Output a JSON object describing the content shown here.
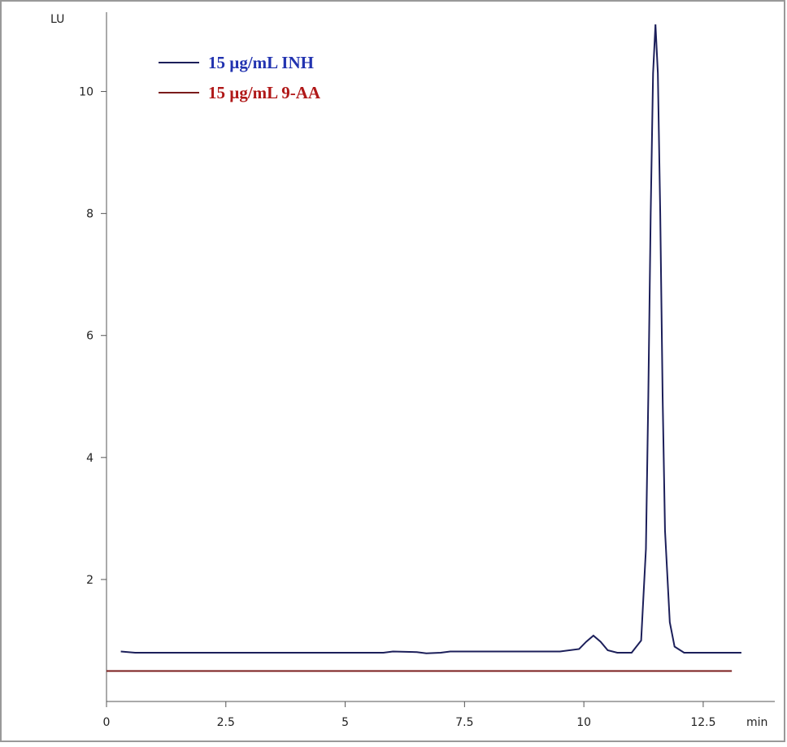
{
  "chart_data": {
    "type": "line",
    "x_label": "min",
    "y_label": "LU",
    "xlim": [
      0,
      14
    ],
    "ylim": [
      0,
      11.3
    ],
    "xticks": [
      0,
      2.5,
      5,
      7.5,
      10,
      12.5
    ],
    "yticks": [
      2,
      4,
      6,
      8,
      10
    ],
    "legend": "top-left",
    "series": [
      {
        "name": "15 µg/mL INH",
        "color": "#1c1f5a",
        "text_color": "#2233b0",
        "x": [
          0.3,
          0.6,
          2,
          4,
          5.8,
          6,
          6.5,
          6.7,
          7,
          7.2,
          9.5,
          9.9,
          10.05,
          10.2,
          10.35,
          10.5,
          10.7,
          11.0,
          11.2,
          11.3,
          11.35,
          11.4,
          11.45,
          11.5,
          11.55,
          11.6,
          11.65,
          11.7,
          11.8,
          11.9,
          12.1,
          13.3
        ],
        "values": [
          0.82,
          0.8,
          0.8,
          0.8,
          0.8,
          0.82,
          0.81,
          0.79,
          0.8,
          0.82,
          0.82,
          0.86,
          0.98,
          1.08,
          0.98,
          0.84,
          0.8,
          0.8,
          1.0,
          2.5,
          5,
          8,
          10.3,
          11.1,
          10.3,
          8,
          5,
          2.8,
          1.3,
          0.9,
          0.8,
          0.8
        ]
      },
      {
        "name": "15 µg/mL 9-AA",
        "color": "#7a1b1b",
        "text_color": "#b01818",
        "x": [
          0,
          13.1
        ],
        "values": [
          0.5,
          0.5
        ]
      }
    ]
  }
}
